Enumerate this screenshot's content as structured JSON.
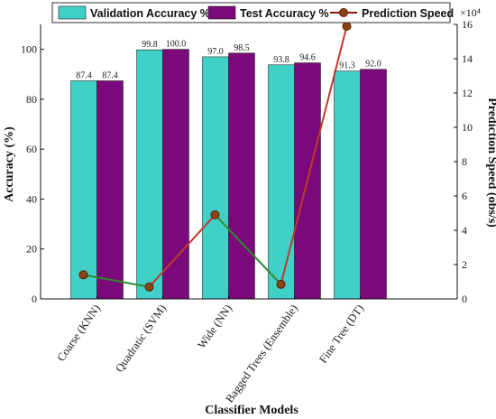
{
  "chart_data": {
    "type": "bar",
    "categories": [
      "Coarse (KNN)",
      "Quadratic (SVM)",
      "Wide (NN)",
      "Bagged Trees (Ensemble)",
      "Fine Tree (DT)"
    ],
    "series": [
      {
        "name": "Validation Accuracy %",
        "values": [
          87.4,
          99.8,
          97.0,
          93.8,
          91.3
        ],
        "color": "#40d0c8",
        "axis": "left"
      },
      {
        "name": "Test Accuracy %",
        "values": [
          87.4,
          100.0,
          98.5,
          94.6,
          92.0
        ],
        "color": "#7a0a7a",
        "axis": "left"
      }
    ],
    "line_series": {
      "name": "Prediction Speed",
      "type": "line",
      "values": [
        14000,
        7000,
        49000,
        8500,
        160000
      ],
      "color": "#8b1a0a",
      "line_colors": [
        "#2e8b2e",
        "#c0392b",
        "#2e8b2e",
        "#c0392b"
      ],
      "axis": "right"
    },
    "xlabel": "Classifier Models",
    "ylabel": "Accuracy (%)",
    "y2label": "Prediction Speed (obs/s)",
    "ylim": [
      0,
      110
    ],
    "yticks": [
      0,
      20,
      40,
      60,
      80,
      100
    ],
    "y2lim": [
      0,
      160000
    ],
    "y2ticks": [
      0,
      2,
      4,
      6,
      8,
      10,
      12,
      14,
      16
    ],
    "y2multiplier": "×10⁴",
    "data_labels": {
      "validation": [
        "87.4",
        "99.8",
        "97.0",
        "93.8",
        "91.3"
      ],
      "test": [
        "87.4",
        "100.0",
        "98.5",
        "94.6",
        "92.0"
      ]
    },
    "legend": {
      "placement": "top",
      "entries": [
        "Validation Accuracy %",
        "Test Accuracy %",
        "Prediction Speed"
      ]
    },
    "grid": false
  }
}
